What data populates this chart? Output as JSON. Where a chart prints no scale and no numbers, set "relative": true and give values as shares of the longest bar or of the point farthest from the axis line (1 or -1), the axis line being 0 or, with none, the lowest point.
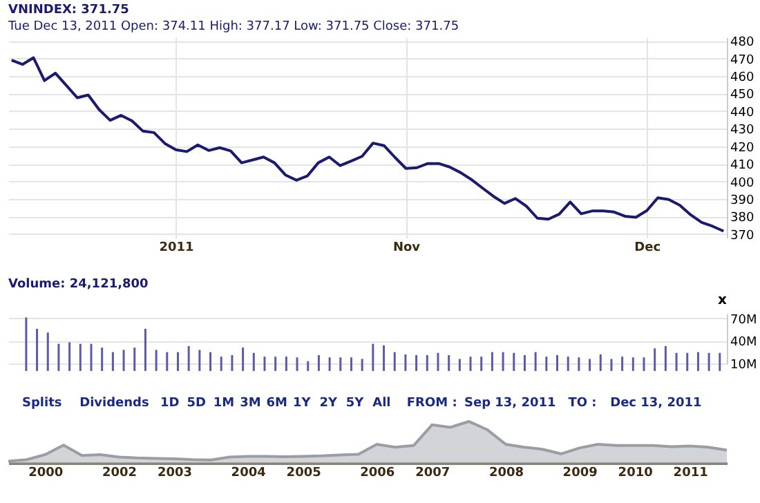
{
  "chart_data": [
    {
      "type": "line",
      "title": "VNINDEX: 371.75",
      "subtitle": "Tue Dec 13, 2011   Open: 374.11   High: 377.17   Low: 371.75   Close: 371.75",
      "categories": [
        null,
        null,
        null,
        null,
        null,
        null,
        null,
        null,
        null,
        null,
        null,
        null,
        null,
        null,
        null,
        "2011",
        null,
        null,
        null,
        null,
        null,
        null,
        null,
        null,
        null,
        null,
        null,
        null,
        null,
        null,
        null,
        null,
        null,
        null,
        null,
        null,
        "Nov",
        null,
        null,
        null,
        null,
        null,
        null,
        null,
        null,
        null,
        null,
        null,
        null,
        null,
        null,
        null,
        null,
        null,
        null,
        null,
        null,
        null,
        "Dec",
        null,
        null,
        null,
        null,
        null,
        null,
        null
      ],
      "series": [
        {
          "color": "#1a1a6e",
          "values": [
            469,
            466.6,
            470.4,
            457.4,
            461.6,
            454.6,
            447.6,
            449.2,
            440.8,
            434.8,
            437.6,
            434.4,
            428.6,
            427.8,
            421.6,
            418,
            417,
            420.8,
            417.6,
            419.2,
            417.4,
            410.6,
            412.2,
            413.9,
            410.6,
            403.7,
            400.7,
            403.1,
            410.6,
            413.9,
            409,
            411.6,
            414.3,
            421.8,
            420.4,
            413.7,
            407.4,
            407.8,
            410.2,
            410.2,
            408.2,
            405,
            401,
            396.2,
            391.5,
            387.5,
            390.3,
            385.9,
            379.1,
            378.5,
            381.4,
            388.3,
            381.6,
            383.2,
            383.2,
            382.6,
            380.2,
            379.6,
            383.4,
            390.7,
            389.7,
            386.5,
            381,
            376.7,
            374.5,
            371.75
          ]
        }
      ],
      "ylim": [
        368,
        482
      ],
      "yticks": [
        370,
        380,
        390,
        400,
        410,
        420,
        430,
        440,
        450,
        460,
        470,
        480
      ],
      "grid": true,
      "marker": "none",
      "line_style": "solid",
      "legend": false
    },
    {
      "type": "bar",
      "title": "Volume: 24,121,800",
      "categories": [
        null,
        null,
        null,
        null,
        null,
        null,
        null,
        null,
        null,
        null,
        null,
        null,
        null,
        null,
        null,
        null,
        null,
        null,
        null,
        null,
        null,
        null,
        null,
        null,
        null,
        null,
        null,
        null,
        null,
        null,
        null,
        null,
        null,
        null,
        null,
        null,
        null,
        null,
        null,
        null,
        null,
        null,
        null,
        null,
        null,
        null,
        null,
        null,
        null,
        null,
        null,
        null,
        null,
        null,
        null,
        null,
        null,
        null,
        null,
        null,
        null,
        null,
        null,
        null,
        null,
        null
      ],
      "series": [
        {
          "color": "#5a5aa8",
          "values": [
            null,
            71,
            56,
            51,
            36,
            38,
            36,
            36,
            31,
            25,
            28,
            31,
            56,
            28,
            25,
            25,
            33,
            28,
            25,
            19,
            21,
            31,
            24,
            19,
            19,
            19,
            18,
            13,
            21,
            18,
            18,
            18,
            16,
            36,
            34,
            25,
            22,
            21,
            21,
            24,
            21,
            16,
            19,
            19,
            25,
            25,
            24,
            21,
            25,
            19,
            21,
            19,
            18,
            16,
            22,
            16,
            19,
            18,
            18,
            30,
            33,
            24,
            24,
            25,
            24,
            24
          ]
        }
      ],
      "ylim": [
        10,
        76
      ],
      "yticks": [
        {
          "value": 10,
          "label": "10M"
        },
        {
          "value": 40,
          "label": "40M"
        },
        {
          "value": 70,
          "label": "70M"
        }
      ],
      "grid": true,
      "tick_labels": "y",
      "legend": false,
      "annotations": [
        "x"
      ]
    },
    {
      "type": "area",
      "relative": true,
      "categories": [
        null,
        null,
        "2000",
        null,
        null,
        null,
        "2002",
        null,
        null,
        "2003",
        null,
        null,
        null,
        "2004",
        null,
        null,
        "2005",
        null,
        null,
        null,
        "2006",
        null,
        null,
        "2007",
        null,
        null,
        null,
        "2008",
        null,
        null,
        null,
        "2009",
        null,
        null,
        "2010",
        null,
        null,
        "2011",
        null,
        null
      ],
      "series": [
        {
          "color": "#b4b8be",
          "values": [
            0.04,
            0.08,
            0.2,
            0.43,
            0.18,
            0.2,
            0.14,
            0.12,
            0.11,
            0.1,
            0.08,
            0.07,
            0.14,
            0.16,
            0.16,
            0.15,
            0.16,
            0.17,
            0.19,
            0.21,
            0.45,
            0.38,
            0.42,
            0.92,
            0.86,
            1,
            0.8,
            0.45,
            0.38,
            0.33,
            0.22,
            0.36,
            0.45,
            0.42,
            0.42,
            0.42,
            0.39,
            0.41,
            0.38,
            0.31
          ]
        }
      ],
      "tick_labels": "x",
      "grid": false,
      "legend": false,
      "annotations": [
        "Splits",
        "Dividends",
        "1D",
        "5D",
        "1M",
        "3M",
        "6M",
        "1Y",
        "2Y",
        "5Y",
        "All",
        "FROM :",
        "Sep 13, 2011",
        "TO :",
        "Dec 13, 2011"
      ]
    }
  ]
}
